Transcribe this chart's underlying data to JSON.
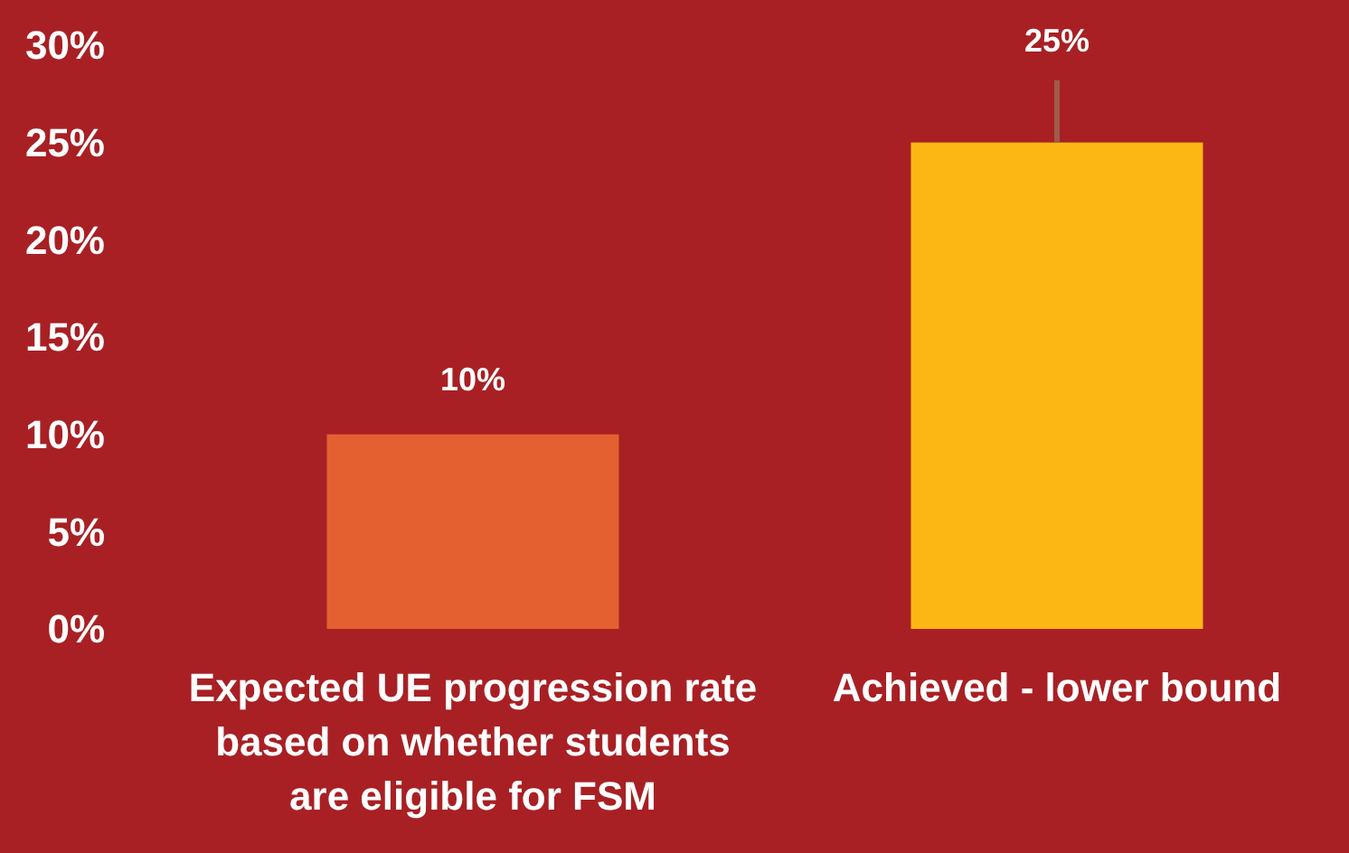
{
  "chart_data": {
    "type": "bar",
    "categories": [
      "Expected UE progression rate based on whether students are eligible for FSM",
      "Achieved - lower bound"
    ],
    "values": [
      10,
      25
    ],
    "colors": [
      "#e46030",
      "#fdb714"
    ],
    "errors": [
      null,
      [
        25,
        28.2
      ]
    ],
    "value_labels": [
      "10%",
      "25%"
    ],
    "ylim": [
      0,
      30
    ],
    "yticks": [
      {
        "value": 0,
        "label": "0%"
      },
      {
        "value": 5,
        "label": "5%"
      },
      {
        "value": 10,
        "label": "10%"
      },
      {
        "value": 15,
        "label": "15%"
      },
      {
        "value": 20,
        "label": "20%"
      },
      {
        "value": 25,
        "label": "25%"
      },
      {
        "value": 30,
        "label": "30%"
      }
    ],
    "grid": false
  }
}
